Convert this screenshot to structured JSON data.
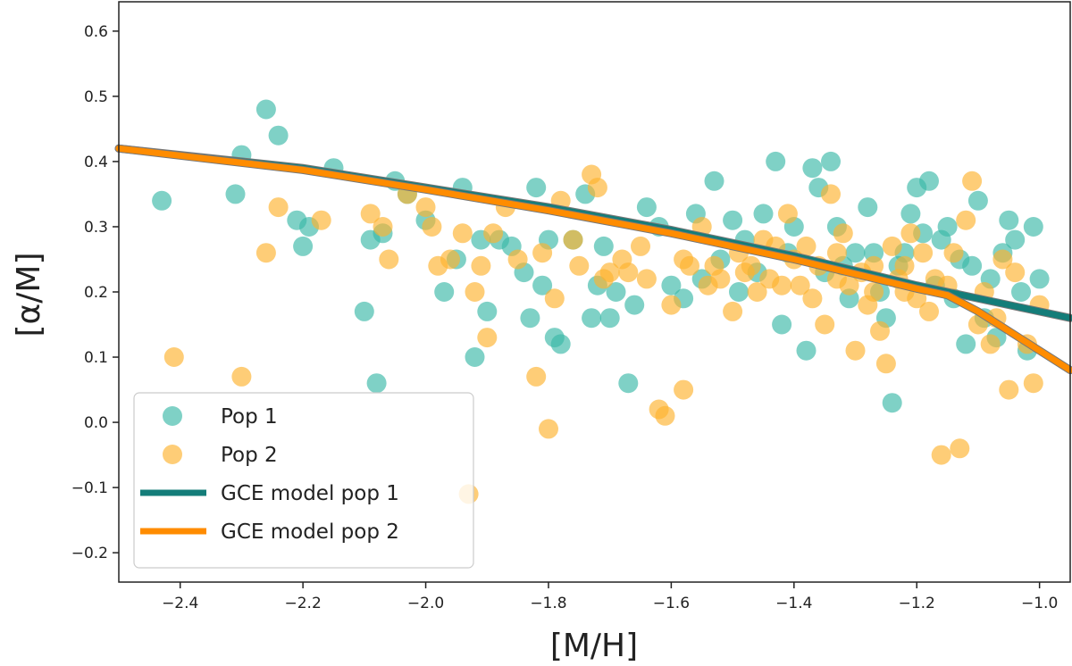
{
  "chart_data": {
    "type": "scatter",
    "title": "",
    "xlabel": "[M/H]",
    "ylabel": "[α/M]",
    "xlim": [
      -2.5,
      -0.95
    ],
    "ylim": [
      -0.245,
      0.645
    ],
    "xticks": [
      -2.4,
      -2.2,
      -2.0,
      -1.8,
      -1.6,
      -1.4,
      -1.2,
      -1.0
    ],
    "xtick_labels": [
      "−2.4",
      "−2.2",
      "−2.0",
      "−1.8",
      "−1.6",
      "−1.4",
      "−1.2",
      "−1.0"
    ],
    "yticks": [
      -0.2,
      -0.1,
      0.0,
      0.1,
      0.2,
      0.3,
      0.4,
      0.5,
      0.6
    ],
    "ytick_labels": [
      "−0.2",
      "−0.1",
      "0.0",
      "0.1",
      "0.2",
      "0.3",
      "0.4",
      "0.5",
      "0.6"
    ],
    "grid": false,
    "legend_position": "bottom-left",
    "series": [
      {
        "name": "Pop 1",
        "kind": "scatter",
        "color": "#3bb8a8",
        "opacity": 0.65,
        "points": [
          [
            -2.43,
            0.34
          ],
          [
            -2.31,
            0.35
          ],
          [
            -2.3,
            0.41
          ],
          [
            -2.26,
            0.48
          ],
          [
            -2.24,
            0.44
          ],
          [
            -2.21,
            0.31
          ],
          [
            -2.2,
            0.27
          ],
          [
            -2.19,
            0.3
          ],
          [
            -2.15,
            0.39
          ],
          [
            -2.1,
            0.17
          ],
          [
            -2.09,
            0.28
          ],
          [
            -2.08,
            0.06
          ],
          [
            -2.07,
            0.29
          ],
          [
            -2.05,
            0.37
          ],
          [
            -2.03,
            0.35
          ],
          [
            -2.0,
            0.31
          ],
          [
            -1.97,
            0.2
          ],
          [
            -1.95,
            0.25
          ],
          [
            -1.94,
            0.36
          ],
          [
            -1.92,
            0.1
          ],
          [
            -1.91,
            0.28
          ],
          [
            -1.9,
            0.17
          ],
          [
            -1.88,
            0.28
          ],
          [
            -1.86,
            0.27
          ],
          [
            -1.84,
            0.23
          ],
          [
            -1.83,
            0.16
          ],
          [
            -1.82,
            0.36
          ],
          [
            -1.81,
            0.21
          ],
          [
            -1.8,
            0.28
          ],
          [
            -1.79,
            0.13
          ],
          [
            -1.78,
            0.12
          ],
          [
            -1.76,
            0.28
          ],
          [
            -1.74,
            0.35
          ],
          [
            -1.73,
            0.16
          ],
          [
            -1.72,
            0.21
          ],
          [
            -1.71,
            0.27
          ],
          [
            -1.7,
            0.16
          ],
          [
            -1.69,
            0.2
          ],
          [
            -1.67,
            0.06
          ],
          [
            -1.66,
            0.18
          ],
          [
            -1.64,
            0.33
          ],
          [
            -1.62,
            0.3
          ],
          [
            -1.6,
            0.21
          ],
          [
            -1.58,
            0.19
          ],
          [
            -1.56,
            0.32
          ],
          [
            -1.55,
            0.22
          ],
          [
            -1.53,
            0.37
          ],
          [
            -1.52,
            0.25
          ],
          [
            -1.5,
            0.31
          ],
          [
            -1.49,
            0.2
          ],
          [
            -1.48,
            0.28
          ],
          [
            -1.46,
            0.23
          ],
          [
            -1.45,
            0.32
          ],
          [
            -1.43,
            0.4
          ],
          [
            -1.42,
            0.15
          ],
          [
            -1.41,
            0.26
          ],
          [
            -1.4,
            0.3
          ],
          [
            -1.38,
            0.11
          ],
          [
            -1.37,
            0.39
          ],
          [
            -1.36,
            0.36
          ],
          [
            -1.35,
            0.23
          ],
          [
            -1.34,
            0.4
          ],
          [
            -1.33,
            0.3
          ],
          [
            -1.32,
            0.24
          ],
          [
            -1.31,
            0.19
          ],
          [
            -1.3,
            0.26
          ],
          [
            -1.28,
            0.33
          ],
          [
            -1.27,
            0.26
          ],
          [
            -1.26,
            0.2
          ],
          [
            -1.25,
            0.16
          ],
          [
            -1.24,
            0.03
          ],
          [
            -1.23,
            0.24
          ],
          [
            -1.22,
            0.26
          ],
          [
            -1.21,
            0.32
          ],
          [
            -1.2,
            0.36
          ],
          [
            -1.19,
            0.29
          ],
          [
            -1.18,
            0.37
          ],
          [
            -1.17,
            0.21
          ],
          [
            -1.16,
            0.28
          ],
          [
            -1.15,
            0.3
          ],
          [
            -1.14,
            0.19
          ],
          [
            -1.13,
            0.25
          ],
          [
            -1.12,
            0.12
          ],
          [
            -1.11,
            0.24
          ],
          [
            -1.1,
            0.34
          ],
          [
            -1.09,
            0.16
          ],
          [
            -1.08,
            0.22
          ],
          [
            -1.07,
            0.13
          ],
          [
            -1.06,
            0.26
          ],
          [
            -1.05,
            0.31
          ],
          [
            -1.04,
            0.28
          ],
          [
            -1.03,
            0.2
          ],
          [
            -1.02,
            0.11
          ],
          [
            -1.01,
            0.3
          ],
          [
            -1.0,
            0.22
          ]
        ]
      },
      {
        "name": "Pop 2",
        "kind": "scatter",
        "color": "#fdb22e",
        "opacity": 0.65,
        "points": [
          [
            -2.41,
            0.1
          ],
          [
            -2.3,
            0.07
          ],
          [
            -2.26,
            0.26
          ],
          [
            -2.24,
            0.33
          ],
          [
            -2.17,
            0.31
          ],
          [
            -2.09,
            0.32
          ],
          [
            -2.07,
            0.3
          ],
          [
            -2.06,
            0.25
          ],
          [
            -2.03,
            0.35
          ],
          [
            -2.0,
            0.33
          ],
          [
            -1.99,
            0.3
          ],
          [
            -1.98,
            0.24
          ],
          [
            -1.96,
            0.25
          ],
          [
            -1.94,
            0.29
          ],
          [
            -1.93,
            -0.11
          ],
          [
            -1.92,
            0.2
          ],
          [
            -1.91,
            0.24
          ],
          [
            -1.9,
            0.13
          ],
          [
            -1.89,
            0.29
          ],
          [
            -1.87,
            0.33
          ],
          [
            -1.85,
            0.25
          ],
          [
            -1.82,
            0.07
          ],
          [
            -1.81,
            0.26
          ],
          [
            -1.8,
            -0.01
          ],
          [
            -1.79,
            0.19
          ],
          [
            -1.78,
            0.34
          ],
          [
            -1.76,
            0.28
          ],
          [
            -1.75,
            0.24
          ],
          [
            -1.73,
            0.38
          ],
          [
            -1.72,
            0.36
          ],
          [
            -1.7,
            0.23
          ],
          [
            -1.68,
            0.25
          ],
          [
            -1.65,
            0.27
          ],
          [
            -1.64,
            0.22
          ],
          [
            -1.62,
            0.02
          ],
          [
            -1.61,
            0.01
          ],
          [
            -1.6,
            0.18
          ],
          [
            -1.58,
            0.05
          ],
          [
            -1.57,
            0.24
          ],
          [
            -1.55,
            0.3
          ],
          [
            -1.54,
            0.21
          ],
          [
            -1.52,
            0.22
          ],
          [
            -1.5,
            0.17
          ],
          [
            -1.49,
            0.26
          ],
          [
            -1.47,
            0.24
          ],
          [
            -1.46,
            0.2
          ],
          [
            -1.45,
            0.28
          ],
          [
            -1.44,
            0.22
          ],
          [
            -1.43,
            0.27
          ],
          [
            -1.41,
            0.32
          ],
          [
            -1.4,
            0.25
          ],
          [
            -1.39,
            0.21
          ],
          [
            -1.38,
            0.27
          ],
          [
            -1.37,
            0.19
          ],
          [
            -1.36,
            0.24
          ],
          [
            -1.35,
            0.15
          ],
          [
            -1.34,
            0.35
          ],
          [
            -1.33,
            0.26
          ],
          [
            -1.32,
            0.29
          ],
          [
            -1.31,
            0.21
          ],
          [
            -1.3,
            0.11
          ],
          [
            -1.29,
            0.23
          ],
          [
            -1.28,
            0.18
          ],
          [
            -1.27,
            0.24
          ],
          [
            -1.26,
            0.14
          ],
          [
            -1.25,
            0.09
          ],
          [
            -1.24,
            0.27
          ],
          [
            -1.23,
            0.22
          ],
          [
            -1.22,
            0.24
          ],
          [
            -1.21,
            0.29
          ],
          [
            -1.2,
            0.19
          ],
          [
            -1.19,
            0.26
          ],
          [
            -1.18,
            0.17
          ],
          [
            -1.17,
            0.22
          ],
          [
            -1.16,
            -0.05
          ],
          [
            -1.15,
            0.21
          ],
          [
            -1.14,
            0.26
          ],
          [
            -1.13,
            -0.04
          ],
          [
            -1.12,
            0.31
          ],
          [
            -1.11,
            0.37
          ],
          [
            -1.1,
            0.15
          ],
          [
            -1.09,
            0.2
          ],
          [
            -1.08,
            0.12
          ],
          [
            -1.07,
            0.16
          ],
          [
            -1.06,
            0.25
          ],
          [
            -1.05,
            0.05
          ],
          [
            -1.04,
            0.23
          ],
          [
            -1.02,
            0.12
          ],
          [
            -1.01,
            0.06
          ],
          [
            -1.0,
            0.18
          ],
          [
            -1.48,
            0.23
          ],
          [
            -1.53,
            0.24
          ],
          [
            -1.42,
            0.21
          ],
          [
            -1.27,
            0.2
          ],
          [
            -1.33,
            0.22
          ],
          [
            -1.22,
            0.2
          ],
          [
            -1.58,
            0.25
          ],
          [
            -1.67,
            0.23
          ],
          [
            -1.71,
            0.22
          ]
        ]
      },
      {
        "name": "GCE model pop 1",
        "kind": "line",
        "color": "#147d79",
        "points": [
          [
            -2.5,
            0.42
          ],
          [
            -2.2,
            0.39
          ],
          [
            -2.0,
            0.36
          ],
          [
            -1.8,
            0.33
          ],
          [
            -1.6,
            0.295
          ],
          [
            -1.4,
            0.255
          ],
          [
            -1.2,
            0.21
          ],
          [
            -1.15,
            0.2
          ],
          [
            -1.05,
            0.18
          ],
          [
            -0.95,
            0.16
          ]
        ]
      },
      {
        "name": "GCE model pop 2",
        "kind": "line",
        "color": "#ff8c00",
        "points": [
          [
            -2.5,
            0.42
          ],
          [
            -2.2,
            0.387
          ],
          [
            -2.0,
            0.357
          ],
          [
            -1.8,
            0.325
          ],
          [
            -1.6,
            0.29
          ],
          [
            -1.4,
            0.25
          ],
          [
            -1.2,
            0.205
          ],
          [
            -1.15,
            0.195
          ],
          [
            -1.1,
            0.17
          ],
          [
            -1.05,
            0.14
          ],
          [
            -1.0,
            0.11
          ],
          [
            -0.95,
            0.08
          ]
        ]
      }
    ]
  }
}
